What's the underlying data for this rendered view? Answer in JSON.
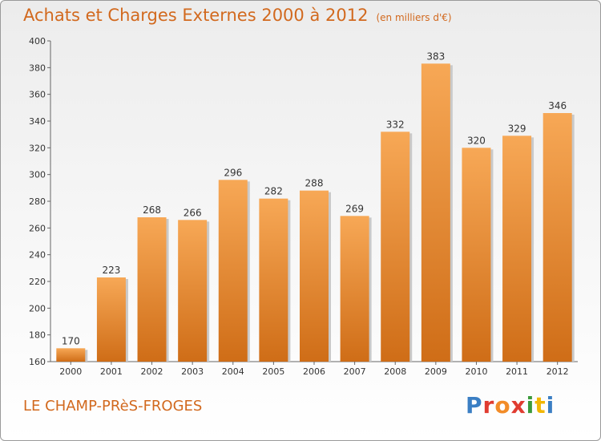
{
  "header": {
    "title": "Achats et Charges Externes 2000 à 2012",
    "unit": "(en milliers d'€)"
  },
  "footer": {
    "commune": "LE CHAMP-PRèS-FROGES",
    "logo": "Proxiti",
    "logo_colors": [
      "#3b7fc4",
      "#e03c31",
      "#f28c28",
      "#e03c31",
      "#3b9b3b",
      "#f2b705",
      "#3b7fc4"
    ]
  },
  "colors": {
    "accent": "#d2691e",
    "bar_light": "#f7a856",
    "bar_dark": "#cf6d17"
  },
  "chart_data": {
    "type": "bar",
    "title": "Achats et Charges Externes 2000 à 2012",
    "subtitle": "(en milliers d'€)",
    "xlabel": "",
    "ylabel": "",
    "categories": [
      "2000",
      "2001",
      "2002",
      "2003",
      "2004",
      "2005",
      "2006",
      "2007",
      "2008",
      "2009",
      "2010",
      "2011",
      "2012"
    ],
    "values": [
      170,
      223,
      268,
      266,
      296,
      282,
      288,
      269,
      332,
      383,
      320,
      329,
      346
    ],
    "ylim": [
      160,
      400
    ],
    "yticks": [
      160,
      180,
      200,
      220,
      240,
      260,
      280,
      300,
      320,
      340,
      360,
      380,
      400
    ],
    "grid": false,
    "legend": "none"
  }
}
